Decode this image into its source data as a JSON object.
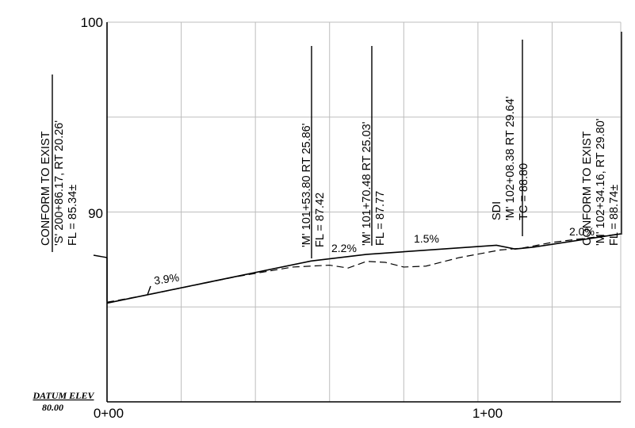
{
  "chart_data": {
    "type": "line",
    "y_ticks": [
      "100",
      "90"
    ],
    "x_ticks": [
      "0+00",
      "1+00"
    ],
    "datum": {
      "label": "DATUM ELEV",
      "value": "80.00"
    },
    "grade_labels": [
      "3.9%",
      "2.2%",
      "1.5%",
      "2.0%"
    ],
    "callouts": [
      {
        "line1": "CONFORM TO EXIST",
        "line2": "'S' 200+86.17, RT 20.26'",
        "line3": "FL = 85.34±"
      },
      {
        "line1": "'M' 101+53.80 RT 25.86'",
        "line2": "FL = 87.42"
      },
      {
        "line1": "'M' 101+70.48 RT 25.03'",
        "line2": "FL = 87.77"
      },
      {
        "line1": "SDI",
        "line2": "'M' 102+08.38 RT 29.64'",
        "line3": "TC = 88.80"
      },
      {
        "line1": "CONFORM TO EXIST",
        "line2": "'M' 102+34.16, RT 29.80'",
        "line3": "FL = 88.74±"
      }
    ],
    "xlim": [
      0,
      138.5
    ],
    "ylim": [
      80,
      100
    ],
    "grid": true,
    "series": [
      {
        "style": "solid",
        "points": [
          [
            0,
            85.2
          ],
          [
            55,
            87.42
          ],
          [
            70,
            87.77
          ],
          [
            105,
            88.25
          ],
          [
            110,
            88.05
          ],
          [
            115,
            88.15
          ],
          [
            138.5,
            88.85
          ]
        ]
      },
      {
        "style": "dashed",
        "points": [
          [
            0,
            85.25
          ],
          [
            10,
            85.6
          ],
          [
            20,
            86.0
          ],
          [
            35,
            86.6
          ],
          [
            50,
            87.1
          ],
          [
            60,
            87.2
          ],
          [
            65,
            87.05
          ],
          [
            70,
            87.4
          ],
          [
            75,
            87.35
          ],
          [
            80,
            87.1
          ],
          [
            86,
            87.15
          ],
          [
            95,
            87.6
          ],
          [
            106,
            88.0
          ],
          [
            112,
            88.1
          ],
          [
            120,
            88.4
          ],
          [
            138.5,
            88.85
          ]
        ]
      }
    ]
  }
}
